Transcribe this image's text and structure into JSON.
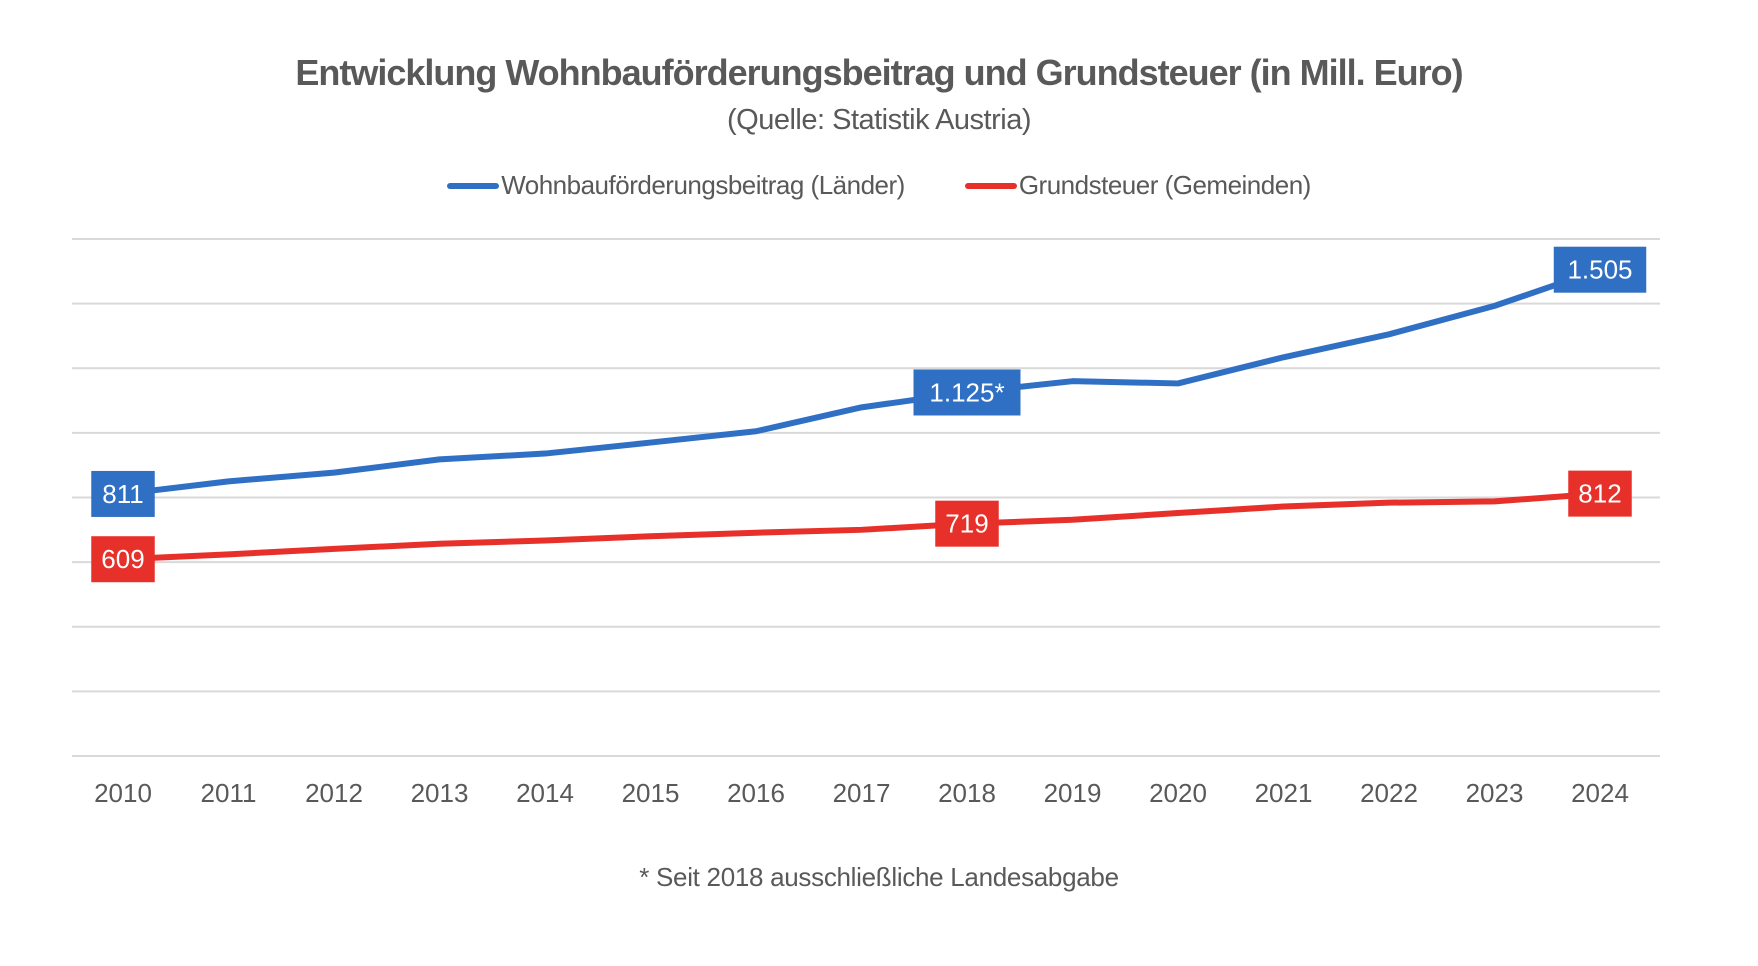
{
  "chart_data": {
    "type": "line",
    "title": "Entwicklung Wohnbauförderungsbeitrag und Grundsteuer (in Mill. Euro)",
    "subtitle": "(Quelle: Statistik Austria)",
    "xlabel": "",
    "ylabel": "",
    "categories": [
      "2010",
      "2011",
      "2012",
      "2013",
      "2014",
      "2015",
      "2016",
      "2017",
      "2018",
      "2019",
      "2020",
      "2021",
      "2022",
      "2023",
      "2024"
    ],
    "ylim": [
      0,
      1600
    ],
    "y_gridlines": [
      0,
      200,
      400,
      600,
      800,
      1000,
      1200,
      1400,
      1600
    ],
    "y_tick_labels_visible": false,
    "grid": true,
    "legend_position": "top",
    "series": [
      {
        "name": "Wohnbauförderungsbeitrag (Länder)",
        "color": "#3070C4",
        "values": [
          811,
          850,
          877,
          918,
          936,
          970,
          1005,
          1079,
          1125,
          1160,
          1153,
          1234,
          1305,
          1393,
          1505
        ],
        "data_labels": [
          {
            "index": 0,
            "text": "811"
          },
          {
            "index": 8,
            "text": "1.125*"
          },
          {
            "index": 14,
            "text": "1.505"
          }
        ]
      },
      {
        "name": "Grundsteuer (Gemeinden)",
        "color": "#E8302A",
        "values": [
          609,
          624,
          641,
          657,
          667,
          680,
          691,
          700,
          719,
          731,
          752,
          772,
          784,
          788,
          812
        ],
        "data_labels": [
          {
            "index": 0,
            "text": "609"
          },
          {
            "index": 8,
            "text": "719"
          },
          {
            "index": 14,
            "text": "812"
          }
        ]
      }
    ],
    "footnote": "* Seit 2018 ausschließliche Landesabgabe"
  }
}
